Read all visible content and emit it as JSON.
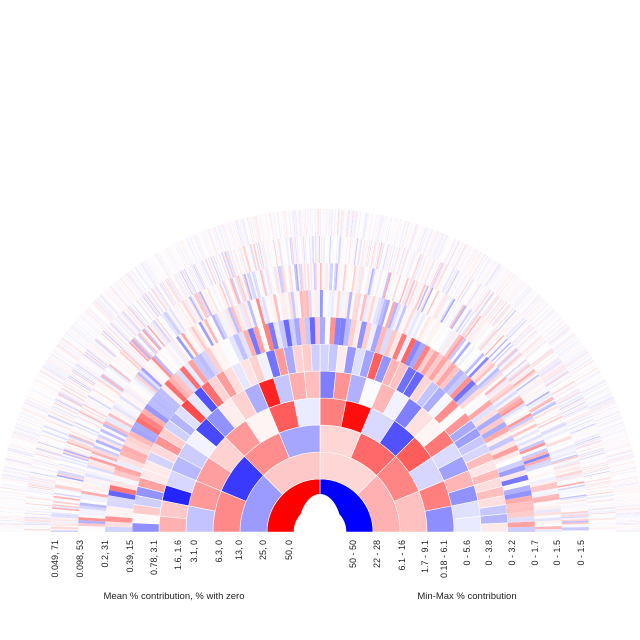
{
  "chart_data": {
    "type": "other",
    "description_free": true,
    "left_axis": {
      "caption": "Mean % contribution, % with zero",
      "tick_labels": [
        "0.049, 71",
        "0.098, 53",
        "0.2, 31",
        "0.39, 15",
        "0.78, 3.1",
        "1.6, 1.6",
        "3.1, 0",
        "6.3, 0",
        "13, 0",
        "25, 0",
        "50, 0"
      ]
    },
    "right_axis": {
      "caption": "Min-Max % contribution",
      "tick_labels": [
        "50 - 50",
        "22 - 28",
        "6.1 - 16",
        "1.7 - 9.1",
        "0.18 - 6.1",
        "0 - 5.6",
        "0 - 3.8",
        "0 - 3.2",
        "0 - 1.7",
        "0 - 1.5",
        "0 - 1.5"
      ]
    },
    "colors": {
      "positive": "#ff0000",
      "negative": "#0000ff",
      "neutral": "#ffffff"
    }
  }
}
